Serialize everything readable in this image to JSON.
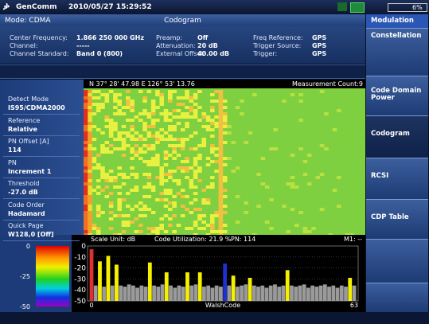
{
  "header": {
    "brand": "GenComm",
    "datetime": "2010/05/27 15:29:52",
    "battery": "6%"
  },
  "mode": "Mode: CDMA",
  "view_title": "Codogram",
  "info": {
    "rows": [
      [
        "Center Frequency:",
        "1.866 250 000 GHz",
        "Preamp:",
        "Off",
        "Freq Reference:",
        "GPS"
      ],
      [
        "Channel:",
        "-----",
        "Attenuation:",
        "20 dB",
        "Trigger Source:",
        "GPS"
      ],
      [
        "Channel Standard:",
        "Band 0 (800)",
        "External Offset:",
        "40.00 dB",
        "Trigger:",
        "GPS"
      ]
    ]
  },
  "menu": {
    "title": "Modulation",
    "items": [
      "Constellation",
      "Code Domain Power",
      "Codogram",
      "RCSI",
      "CDP Table"
    ],
    "selected": 2
  },
  "settings": [
    {
      "label": "Detect Mode",
      "value": "IS95/CDMA2000"
    },
    {
      "label": "Reference",
      "value": "Relative"
    },
    {
      "label": "PN Offset [A]",
      "value": "114"
    },
    {
      "label": "PN",
      "value": "Increment 1"
    },
    {
      "label": "Threshold",
      "value": "-27.0 dB"
    },
    {
      "label": "Code Order",
      "value": "Hadamard"
    },
    {
      "label": "Quick Page",
      "value": "W128,0 [Off]"
    }
  ],
  "codogram": {
    "position": "N 37° 28' 47.98   E 126° 53' 13.76",
    "count": "Measurement Count:9"
  },
  "color_scale": {
    "ticks": [
      0,
      -25,
      -50
    ]
  },
  "chart_data": {
    "type": "bar",
    "info": [
      "Scale Unit: dB",
      "Code Utilization: 21.9 %",
      "PN: 114",
      "M1: --"
    ],
    "xlabel": "WalshCode",
    "x": [
      0,
      1,
      2,
      3,
      4,
      5,
      6,
      7,
      8,
      9,
      10,
      11,
      12,
      13,
      14,
      15,
      16,
      17,
      18,
      19,
      20,
      21,
      22,
      23,
      24,
      25,
      26,
      27,
      28,
      29,
      30,
      31,
      32,
      33,
      34,
      35,
      36,
      37,
      38,
      39,
      40,
      41,
      42,
      43,
      44,
      45,
      46,
      47,
      48,
      49,
      50,
      51,
      52,
      53,
      54,
      55,
      56,
      57,
      58,
      59,
      60,
      61,
      62,
      63
    ],
    "values": [
      -3,
      -36,
      -14,
      -37,
      -9,
      -36,
      -17,
      -36,
      -37,
      -35,
      -36,
      -38,
      -36,
      -37,
      -15,
      -36,
      -37,
      -35,
      -24,
      -36,
      -38,
      -36,
      -37,
      -24,
      -36,
      -35,
      -24,
      -37,
      -36,
      -38,
      -36,
      -37,
      -16,
      -36,
      -27,
      -37,
      -36,
      -35,
      -29,
      -36,
      -37,
      -36,
      -38,
      -36,
      -35,
      -37,
      -36,
      -22,
      -36,
      -37,
      -36,
      -35,
      -38,
      -36,
      -37,
      -36,
      -35,
      -37,
      -36,
      -38,
      -36,
      -37,
      -29,
      -36
    ],
    "colors": [
      "#e03030",
      "#9a9a9a",
      "#f5f000",
      "#9a9a9a",
      "#f5f000",
      "#9a9a9a",
      "#f5f000",
      "#9a9a9a",
      "#9a9a9a",
      "#9a9a9a",
      "#9a9a9a",
      "#9a9a9a",
      "#9a9a9a",
      "#9a9a9a",
      "#f5f000",
      "#9a9a9a",
      "#9a9a9a",
      "#9a9a9a",
      "#f5f000",
      "#9a9a9a",
      "#9a9a9a",
      "#9a9a9a",
      "#9a9a9a",
      "#f5f000",
      "#9a9a9a",
      "#9a9a9a",
      "#f5f000",
      "#9a9a9a",
      "#9a9a9a",
      "#9a9a9a",
      "#9a9a9a",
      "#9a9a9a",
      "#2030d0",
      "#9a9a9a",
      "#f5f000",
      "#9a9a9a",
      "#9a9a9a",
      "#9a9a9a",
      "#f5f000",
      "#9a9a9a",
      "#9a9a9a",
      "#9a9a9a",
      "#9a9a9a",
      "#9a9a9a",
      "#9a9a9a",
      "#9a9a9a",
      "#9a9a9a",
      "#f5f000",
      "#9a9a9a",
      "#9a9a9a",
      "#9a9a9a",
      "#9a9a9a",
      "#9a9a9a",
      "#9a9a9a",
      "#9a9a9a",
      "#9a9a9a",
      "#9a9a9a",
      "#9a9a9a",
      "#9a9a9a",
      "#9a9a9a",
      "#9a9a9a",
      "#9a9a9a",
      "#f5f000",
      "#9a9a9a"
    ],
    "xlim": [
      0,
      63
    ],
    "xticks": [
      0,
      63
    ],
    "ylim": [
      -50,
      0
    ],
    "yticks": [
      0,
      -10,
      -20,
      -30,
      -40,
      -50
    ],
    "grid": true
  }
}
